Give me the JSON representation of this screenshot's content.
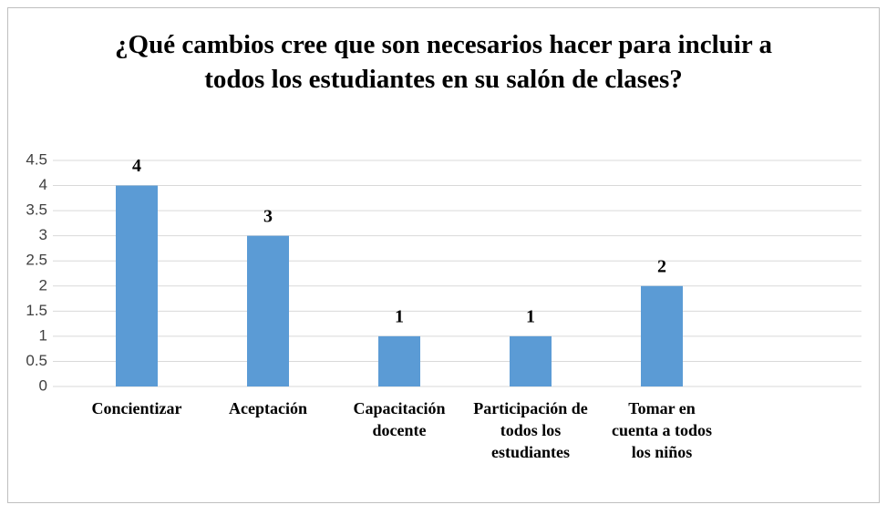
{
  "chart_data": {
    "type": "bar",
    "title": "¿Qué cambios cree que son necesarios hacer para incluir a todos los estudiantes en su salón de clases?",
    "categories": [
      "Concientizar",
      "Aceptación",
      "Capacitación docente",
      "Participación de todos los estudiantes",
      "Tomar en cuenta a todos los niños"
    ],
    "values": [
      4,
      3,
      1,
      1,
      2
    ],
    "color": "#5b9bd5",
    "ylim": [
      0,
      4.5
    ],
    "yticks": [
      0,
      0.5,
      1,
      1.5,
      2,
      2.5,
      3,
      3.5,
      4,
      4.5
    ],
    "grid": true
  }
}
